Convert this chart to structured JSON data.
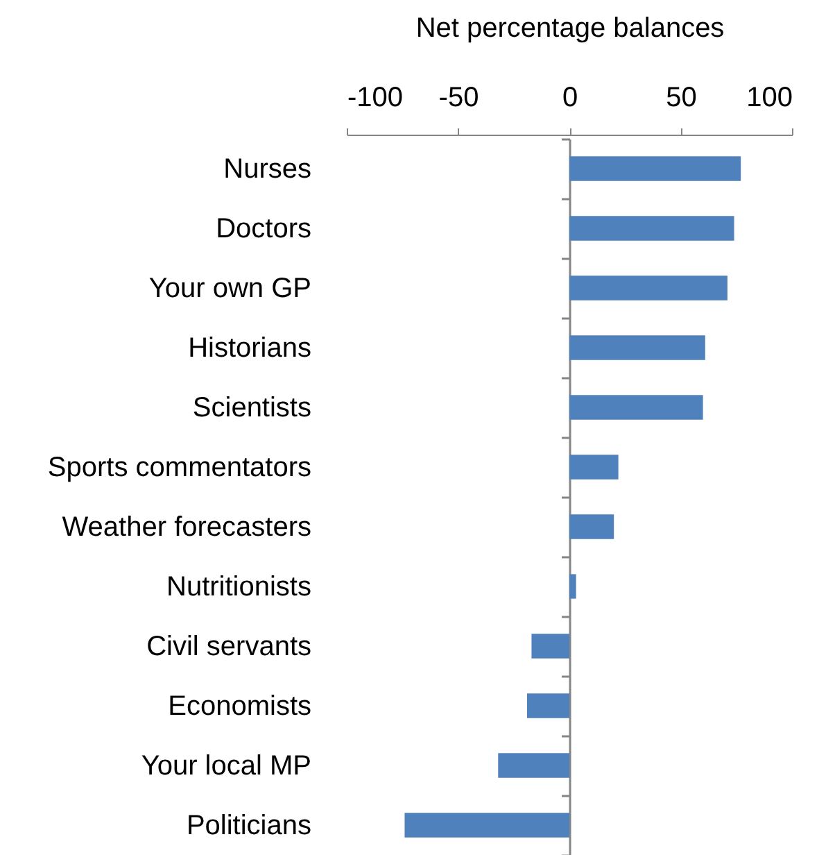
{
  "chart_data": {
    "type": "bar",
    "orientation": "horizontal",
    "xlabel": "Net percentage balances",
    "categories": [
      "Nurses",
      "Doctors",
      "Your own GP",
      "Historians",
      "Scientists",
      "Sports commentators",
      "Weather forecasters",
      "Nutritionists",
      "Civil servants",
      "Economists",
      "Your local MP",
      "Politicians"
    ],
    "values": [
      77,
      74,
      71,
      61,
      60,
      22,
      20,
      3,
      -17,
      -19,
      -32,
      -74
    ],
    "color": "#4f81bd",
    "xlim": [
      -100,
      100
    ],
    "xticks": [
      -100,
      -50,
      0,
      50,
      100
    ]
  }
}
